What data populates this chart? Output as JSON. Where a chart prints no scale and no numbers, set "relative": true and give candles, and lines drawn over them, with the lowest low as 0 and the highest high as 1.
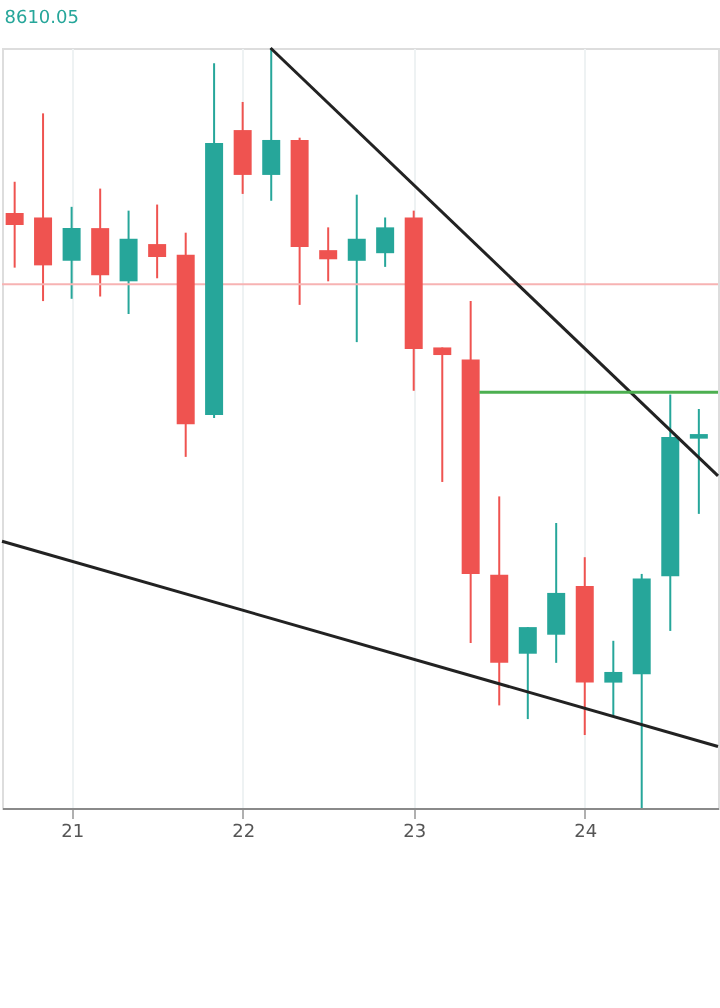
{
  "chart_data": {
    "type": "candlestick",
    "relative": true,
    "annotations": [
      "8610.05"
    ],
    "x": [
      20.667,
      20.833,
      21,
      21.167,
      21.333,
      21.5,
      21.667,
      21.833,
      22,
      22.167,
      22.333,
      22.5,
      22.667,
      22.833,
      23,
      23.167,
      23.333,
      23.5,
      23.667,
      23.833,
      24,
      24.167,
      24.333,
      24.5,
      24.667
    ],
    "ohlc": [
      [
        0.783,
        0.824,
        0.711,
        0.767
      ],
      [
        0.777,
        0.914,
        0.667,
        0.714
      ],
      [
        0.72,
        0.791,
        0.67,
        0.763
      ],
      [
        0.763,
        0.815,
        0.673,
        0.701
      ],
      [
        0.693,
        0.786,
        0.65,
        0.749
      ],
      [
        0.742,
        0.794,
        0.697,
        0.725
      ],
      [
        0.728,
        0.757,
        0.462,
        0.505
      ],
      [
        0.517,
        0.98,
        0.513,
        0.875
      ],
      [
        0.892,
        0.929,
        0.808,
        0.833
      ],
      [
        0.833,
        1.0,
        0.799,
        0.879
      ],
      [
        0.879,
        0.882,
        0.662,
        0.738
      ],
      [
        0.734,
        0.764,
        0.693,
        0.722
      ],
      [
        0.72,
        0.807,
        0.613,
        0.749
      ],
      [
        0.73,
        0.777,
        0.712,
        0.764
      ],
      [
        0.777,
        0.786,
        0.549,
        0.604
      ],
      [
        0.606,
        0.606,
        0.429,
        0.596
      ],
      [
        0.59,
        0.667,
        0.217,
        0.308
      ],
      [
        0.307,
        0.41,
        0.135,
        0.191
      ],
      [
        0.203,
        0.238,
        0.117,
        0.238
      ],
      [
        0.228,
        0.375,
        0.191,
        0.283
      ],
      [
        0.292,
        0.33,
        0.096,
        0.165
      ],
      [
        0.165,
        0.22,
        0.12,
        0.179
      ],
      [
        0.176,
        0.308,
        0.0,
        0.302
      ],
      [
        0.305,
        0.544,
        0.233,
        0.488
      ],
      [
        0.486,
        0.525,
        0.387,
        0.492
      ]
    ],
    "colors": [
      "#ef5350",
      "#ef5350",
      "#26a69a",
      "#ef5350",
      "#26a69a",
      "#ef5350",
      "#ef5350",
      "#26a69a",
      "#ef5350",
      "#26a69a",
      "#ef5350",
      "#ef5350",
      "#26a69a",
      "#26a69a",
      "#ef5350",
      "#ef5350",
      "#ef5350",
      "#ef5350",
      "#26a69a",
      "#26a69a",
      "#ef5350",
      "#26a69a",
      "#26a69a",
      "#26a69a",
      "#26a69a"
    ],
    "series": [
      {
        "type": "line",
        "x": [
          22.163,
          24.779
        ],
        "values": [
          1,
          0.437
        ],
        "color": "#222222"
      },
      {
        "type": "line",
        "x": [
          20.593,
          24.779
        ],
        "values": [
          0.351,
          0.081
        ],
        "color": "#222222"
      },
      {
        "type": "line",
        "x": [
          23.384,
          24.779
        ],
        "values": [
          0.547,
          0.547
        ],
        "color": "#4caf50"
      }
    ],
    "ref_lines": [
      {
        "axis": "y",
        "value": 0.689,
        "color": "#f7b3b3"
      }
    ],
    "xlim": [
      20.593,
      24.779
    ],
    "xticks": [
      21,
      22,
      23,
      24
    ],
    "grid": "x",
    "tick_labels": "x"
  }
}
